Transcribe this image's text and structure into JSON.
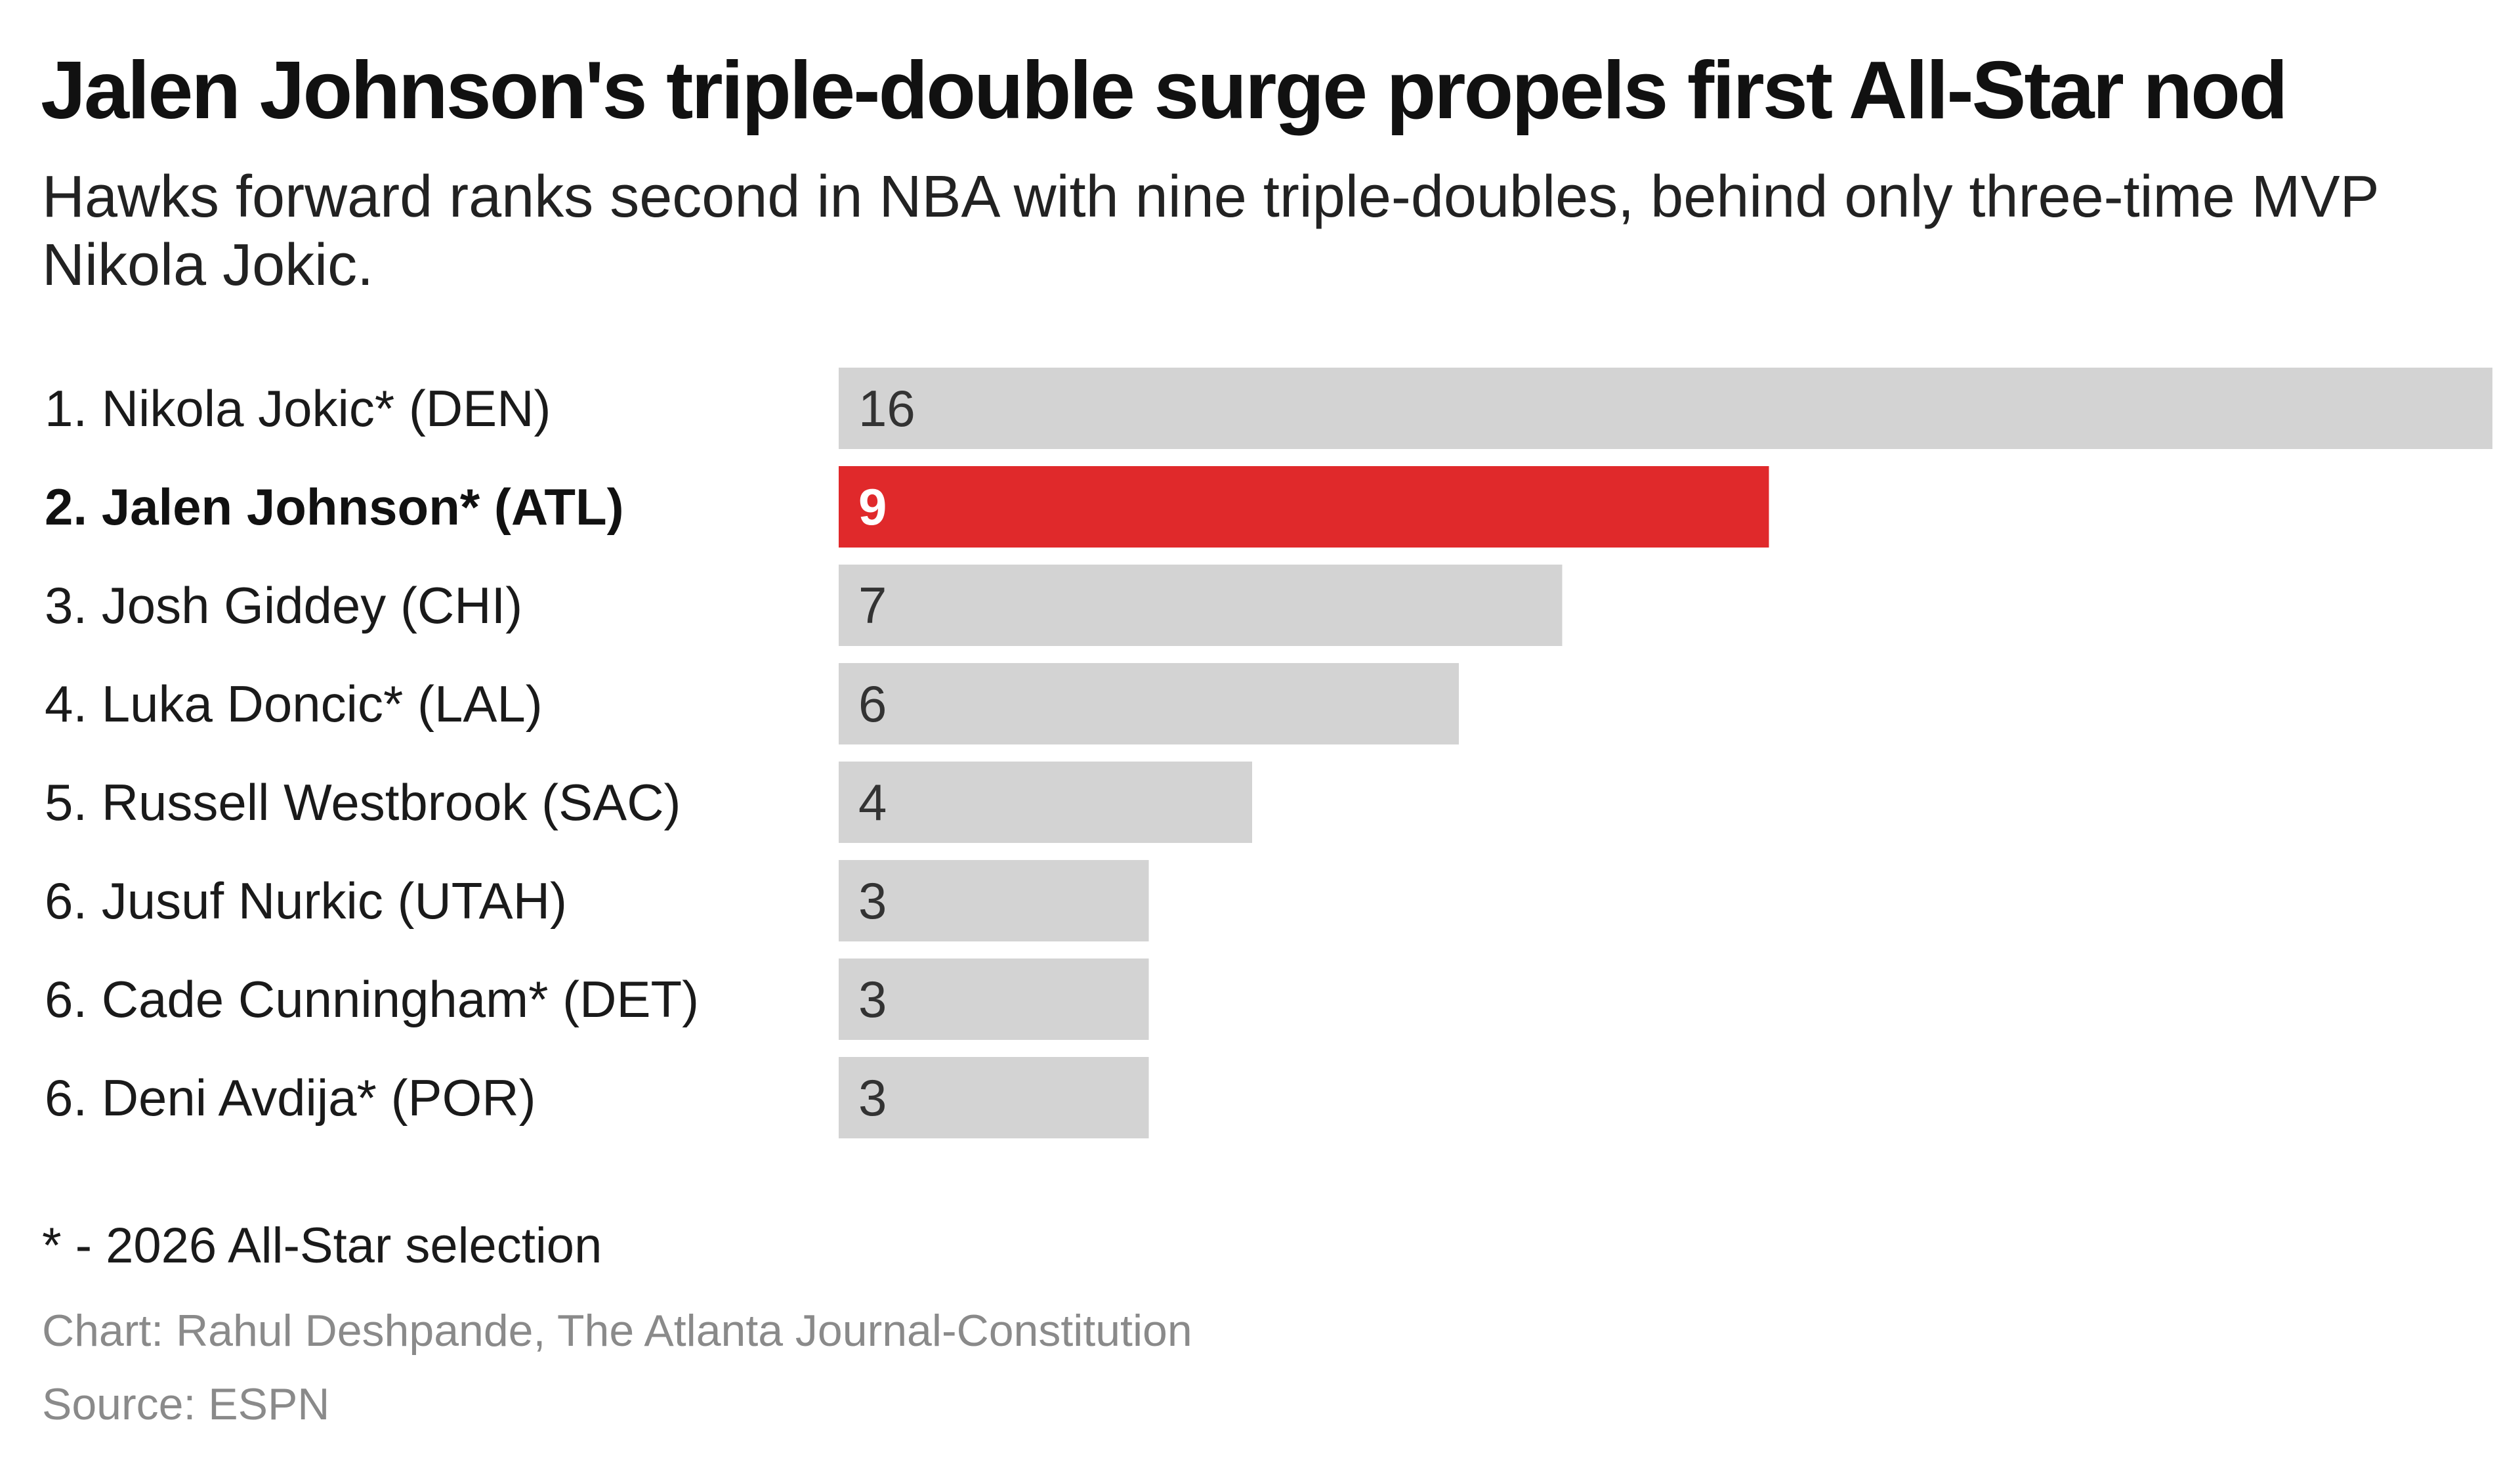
{
  "header": {
    "title": "Jalen Johnson's triple-double surge propels first All-Star nod",
    "subtitle": "Hawks forward ranks second in NBA with nine triple-doubles, behind only three-time MVP Nikola Jokic."
  },
  "chart_data": {
    "type": "bar",
    "orientation": "horizontal",
    "categories": [
      "1. Nikola Jokic* (DEN)",
      "2. Jalen Johnson* (ATL)",
      "3. Josh Giddey (CHI)",
      "4. Luka Doncic* (LAL)",
      "5. Russell Westbrook (SAC)",
      "6. Jusuf Nurkic (UTAH)",
      "6. Cade Cunningham* (DET)",
      "6. Deni Avdija* (POR)"
    ],
    "values": [
      16,
      9,
      7,
      6,
      4,
      3,
      3,
      3
    ],
    "value_labels": [
      "16",
      "9",
      "7",
      "6",
      "4",
      "3",
      "3",
      "3"
    ],
    "highlight_index": 1,
    "xlim": [
      0,
      16
    ],
    "grid": false,
    "legend": "none",
    "colors": {
      "bar": "#d3d3d3",
      "highlight": "#e0292b"
    }
  },
  "footer": {
    "note": "* - 2026 All-Star selection",
    "chart_credit": "Chart: Rahul Deshpande, The Atlanta Journal-Constitution",
    "source": "Source: ESPN"
  }
}
